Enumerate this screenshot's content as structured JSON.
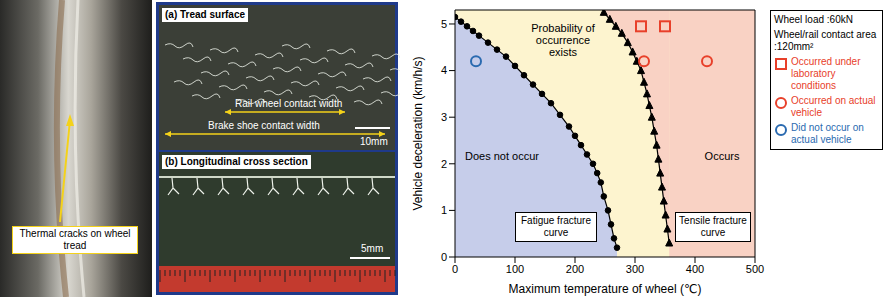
{
  "photos": {
    "wheel": {
      "label": "Thermal cracks on wheel tread"
    },
    "detail": {
      "panel_a": "(a) Tread surface",
      "rail_wheel": "Rail wheel contact width",
      "brake_shoe": "Brake shoe contact width",
      "scale_a": "10mm",
      "panel_b": "(b) Longitudinal cross section",
      "scale_b": "5mm"
    }
  },
  "chart_data": {
    "type": "line",
    "x_label": "Maximum temperature of wheel (℃)",
    "y_label": "Vehicle deceleration (km/h/s)",
    "xlim": [
      0,
      500
    ],
    "xticks": [
      0,
      100,
      200,
      300,
      400,
      500
    ],
    "ylim": [
      0,
      5.3
    ],
    "yticks": [
      0,
      1,
      2,
      3,
      4,
      5
    ],
    "grid": false,
    "legend": "right",
    "regions": [
      {
        "label": "Does not occur",
        "color": "#c6cdea"
      },
      {
        "label": "Probability of occurrence exists",
        "color": "#fdf4cf"
      },
      {
        "label": "Occurs",
        "color": "#f9d2c4"
      }
    ],
    "conditions": [
      "Wheel load :60kN",
      "Wheel/rail contact area :120mm²"
    ],
    "series": [
      {
        "name": "Fatigue fracture curve",
        "type": "line",
        "color": "#000000",
        "marker": "circle",
        "x": [
          0,
          10,
          20,
          30,
          40,
          55,
          70,
          85,
          100,
          115,
          130,
          145,
          160,
          175,
          190,
          200,
          210,
          220,
          230,
          237,
          243,
          248,
          255,
          260,
          265,
          270
        ],
        "values": [
          5.15,
          5.05,
          4.95,
          4.85,
          4.75,
          4.6,
          4.45,
          4.3,
          4.1,
          3.9,
          3.7,
          3.5,
          3.3,
          3.05,
          2.8,
          2.6,
          2.4,
          2.2,
          2.0,
          1.8,
          1.6,
          1.3,
          1.0,
          0.7,
          0.4,
          0.2
        ]
      },
      {
        "name": "Tensile fracture curve",
        "type": "line",
        "color": "#000000",
        "marker": "triangle",
        "x": [
          248,
          258,
          268,
          278,
          288,
          296,
          303,
          310,
          315,
          320,
          324,
          328,
          332,
          336,
          339,
          342,
          345,
          348,
          351,
          354,
          357
        ],
        "values": [
          5.25,
          5.1,
          4.95,
          4.8,
          4.6,
          4.4,
          4.2,
          4.0,
          3.75,
          3.5,
          3.25,
          3.0,
          2.7,
          2.4,
          2.1,
          1.8,
          1.5,
          1.2,
          0.9,
          0.6,
          0.3
        ]
      },
      {
        "name": "Occurred under laboratory conditions",
        "type": "scatter",
        "color": "#e8402a",
        "marker": "square",
        "x": [
          310,
          350
        ],
        "values": [
          4.95,
          4.95
        ]
      },
      {
        "name": "Occurred on actual vehicle",
        "type": "scatter",
        "color": "#e8402a",
        "marker": "circle",
        "x": [
          315,
          420
        ],
        "values": [
          4.2,
          4.2
        ]
      },
      {
        "name": "Did not occur on actual vehicle",
        "type": "scatter",
        "color": "#2a6ab0",
        "marker": "circle",
        "x": [
          35
        ],
        "values": [
          4.2
        ]
      }
    ]
  }
}
